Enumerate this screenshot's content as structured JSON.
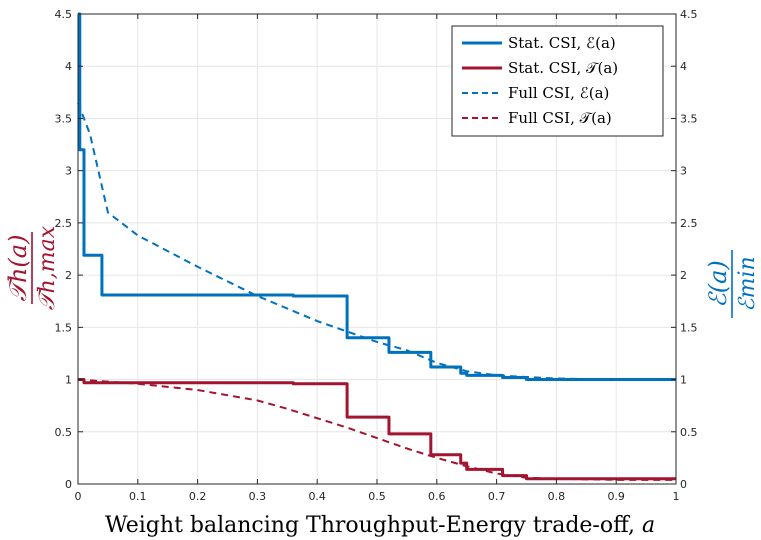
{
  "chart_data": {
    "type": "line",
    "xlabel_text": "Weight balancing Throughput-Energy trade-off, ",
    "xlabel_var": "a",
    "ylabel_left": {
      "num": "𝒯h(a)",
      "den": "𝒯h,max",
      "color": "#A2142F"
    },
    "ylabel_right": {
      "num": "ℰ(a)",
      "den": "ℰmin",
      "color": "#0072BD"
    },
    "xlim": [
      0,
      1
    ],
    "ylim": [
      0,
      4.5
    ],
    "xticks": [
      "0",
      "0.1",
      "0.2",
      "0.3",
      "0.4",
      "0.5",
      "0.6",
      "0.7",
      "0.8",
      "0.9",
      "1"
    ],
    "yticks": [
      "0",
      "0.5",
      "1",
      "1.5",
      "2",
      "2.5",
      "3",
      "3.5",
      "4",
      "4.5"
    ],
    "grid": true,
    "legend_position": "top-right",
    "series": [
      {
        "name": "Stat. CSI, ℰ(a)",
        "color": "#0072BD",
        "dash": "solid",
        "x": [
          0,
          0.003,
          0.003,
          0.01,
          0.01,
          0.04,
          0.04,
          0.36,
          0.36,
          0.45,
          0.45,
          0.52,
          0.52,
          0.59,
          0.59,
          0.64,
          0.64,
          0.65,
          0.65,
          0.71,
          0.71,
          0.75,
          0.75,
          1.0
        ],
        "y": [
          4.5,
          4.5,
          3.2,
          3.2,
          2.19,
          2.19,
          1.81,
          1.81,
          1.8,
          1.8,
          1.4,
          1.4,
          1.26,
          1.26,
          1.12,
          1.12,
          1.06,
          1.06,
          1.04,
          1.04,
          1.02,
          1.02,
          1.0,
          1.0
        ]
      },
      {
        "name": "Stat. CSI, 𝒯(a)",
        "color": "#A2142F",
        "dash": "solid",
        "x": [
          0,
          0.01,
          0.01,
          0.36,
          0.36,
          0.45,
          0.45,
          0.52,
          0.52,
          0.59,
          0.59,
          0.64,
          0.64,
          0.65,
          0.65,
          0.71,
          0.71,
          0.75,
          0.75,
          1.0
        ],
        "y": [
          1.0,
          1.0,
          0.97,
          0.97,
          0.96,
          0.96,
          0.64,
          0.64,
          0.48,
          0.48,
          0.28,
          0.28,
          0.2,
          0.2,
          0.14,
          0.14,
          0.08,
          0.08,
          0.05,
          0.05
        ]
      },
      {
        "name": "Full CSI, ℰ(a)",
        "color": "#0072BD",
        "dash": "dashed",
        "x": [
          0,
          0.02,
          0.05,
          0.1,
          0.2,
          0.3,
          0.4,
          0.5,
          0.55,
          0.6,
          0.65,
          0.7,
          0.8,
          0.9,
          1.0
        ],
        "y": [
          3.65,
          3.35,
          2.6,
          2.38,
          2.08,
          1.8,
          1.56,
          1.36,
          1.28,
          1.16,
          1.08,
          1.04,
          1.01,
          1.0,
          1.0
        ]
      },
      {
        "name": "Full CSI, 𝒯(a)",
        "color": "#A2142F",
        "dash": "dashed",
        "x": [
          0,
          0.05,
          0.1,
          0.2,
          0.3,
          0.35,
          0.4,
          0.45,
          0.5,
          0.55,
          0.6,
          0.65,
          0.7,
          0.75,
          0.8,
          0.9,
          1.0
        ],
        "y": [
          1.0,
          0.98,
          0.96,
          0.9,
          0.8,
          0.72,
          0.63,
          0.54,
          0.44,
          0.34,
          0.25,
          0.17,
          0.1,
          0.06,
          0.05,
          0.04,
          0.04
        ]
      }
    ]
  }
}
